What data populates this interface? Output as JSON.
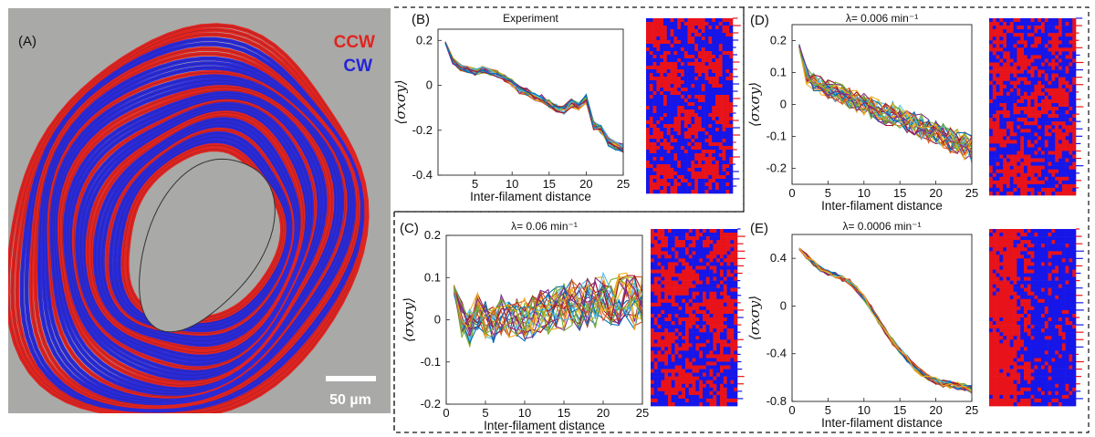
{
  "panel_a": {
    "label": "(A)",
    "legend_ccw": "CCW",
    "legend_cw": "CW",
    "scale_bar": "50 µm",
    "colors": {
      "ccw": "#e0241f",
      "cw": "#2a2ad8",
      "background": "#a9a9a7"
    }
  },
  "chart_data": [
    {
      "id": "B",
      "type": "line",
      "label": "(B)",
      "title": "Experiment",
      "xlabel": "Inter-filament distance",
      "ylabel": "⟨σxσy⟩",
      "xlim": [
        0,
        25
      ],
      "ylim": [
        -0.4,
        0.25
      ],
      "xticks": [
        "5",
        "10",
        "15",
        "20",
        "25"
      ],
      "yticks": [
        "0.2",
        "0",
        "-0.2",
        "-0.4"
      ],
      "x": [
        1,
        2,
        3,
        4,
        5,
        6,
        7,
        8,
        9,
        10,
        11,
        12,
        13,
        14,
        15,
        16,
        17,
        18,
        19,
        20,
        21,
        22,
        23,
        24,
        25
      ],
      "mean": [
        0.19,
        0.11,
        0.08,
        0.07,
        0.06,
        0.07,
        0.06,
        0.05,
        0.03,
        0.01,
        -0.02,
        -0.03,
        -0.05,
        -0.06,
        -0.08,
        -0.1,
        -0.11,
        -0.08,
        -0.09,
        -0.06,
        -0.18,
        -0.2,
        -0.25,
        -0.27,
        -0.28
      ],
      "spread": 0.02,
      "n_series": 22
    },
    {
      "id": "C",
      "type": "line",
      "label": "(C)",
      "title": "λ= 0.06 min⁻¹",
      "xlabel": "Inter-filament distance",
      "ylabel": "⟨σxσy⟩",
      "xlim": [
        0,
        25
      ],
      "ylim": [
        -0.2,
        0.2
      ],
      "xticks": [
        "0",
        "5",
        "10",
        "15",
        "20",
        "25"
      ],
      "yticks": [
        "0.2",
        "0.1",
        "0",
        "-0.1",
        "-0.2"
      ],
      "x": [
        1,
        2,
        3,
        4,
        5,
        6,
        7,
        8,
        9,
        10,
        11,
        12,
        13,
        14,
        15,
        16,
        17,
        18,
        19,
        20,
        21,
        22,
        23,
        24,
        25
      ],
      "mean": [
        0.07,
        0.0,
        -0.02,
        0.02,
        0.0,
        -0.01,
        0.01,
        0.0,
        0.01,
        0.0,
        0.01,
        0.02,
        0.02,
        0.03,
        0.03,
        0.04,
        0.03,
        0.04,
        0.04,
        0.05,
        0.04,
        0.05,
        0.05,
        0.04,
        0.05
      ],
      "spread": 0.06,
      "n_series": 26
    },
    {
      "id": "D",
      "type": "line",
      "label": "(D)",
      "title": "λ= 0.006 min⁻¹",
      "xlabel": "Inter-filament distance",
      "ylabel": "⟨σxσy⟩",
      "xlim": [
        0,
        25
      ],
      "ylim": [
        -0.25,
        0.25
      ],
      "xticks": [
        "0",
        "5",
        "10",
        "15",
        "20",
        "25"
      ],
      "yticks": [
        "0.2",
        "0.1",
        "0",
        "-0.1",
        "-0.2"
      ],
      "x": [
        1,
        2,
        3,
        4,
        5,
        6,
        7,
        8,
        9,
        10,
        11,
        12,
        13,
        14,
        15,
        16,
        17,
        18,
        19,
        20,
        21,
        22,
        23,
        24,
        25
      ],
      "mean": [
        0.18,
        0.09,
        0.07,
        0.06,
        0.05,
        0.04,
        0.03,
        0.02,
        0.01,
        0.0,
        -0.01,
        -0.02,
        -0.03,
        -0.03,
        -0.04,
        -0.05,
        -0.06,
        -0.07,
        -0.08,
        -0.09,
        -0.1,
        -0.11,
        -0.12,
        -0.13,
        -0.14
      ],
      "spread": 0.04,
      "n_series": 26
    },
    {
      "id": "E",
      "type": "line",
      "label": "(E)",
      "title": "λ= 0.0006 min⁻¹",
      "xlabel": "Inter-filament distance",
      "ylabel": "⟨σxσy⟩",
      "xlim": [
        0,
        25
      ],
      "ylim": [
        -0.8,
        0.6
      ],
      "xticks": [
        "0",
        "5",
        "10",
        "15",
        "20",
        "25"
      ],
      "yticks": [
        "0.4",
        "0",
        "-0.4",
        "-0.8"
      ],
      "x": [
        1,
        2,
        3,
        4,
        5,
        6,
        7,
        8,
        9,
        10,
        11,
        12,
        13,
        14,
        15,
        16,
        17,
        18,
        19,
        20,
        21,
        22,
        23,
        24,
        25
      ],
      "mean": [
        0.48,
        0.42,
        0.36,
        0.31,
        0.28,
        0.26,
        0.23,
        0.2,
        0.14,
        0.07,
        -0.02,
        -0.12,
        -0.21,
        -0.3,
        -0.37,
        -0.44,
        -0.51,
        -0.56,
        -0.6,
        -0.63,
        -0.65,
        -0.66,
        -0.67,
        -0.68,
        -0.7
      ],
      "spread": 0.03,
      "n_series": 24
    }
  ],
  "series_colors": [
    "#0072bd",
    "#d95319",
    "#edb120",
    "#7e2f8e",
    "#77ac30",
    "#4dbeee",
    "#a2142f"
  ],
  "heatmaps": {
    "B": {
      "style": "experiment",
      "colors": [
        "#e8131a",
        "#1616e8"
      ]
    },
    "C": {
      "style": "mixed",
      "colors": [
        "#e8131a",
        "#1616e8"
      ]
    },
    "D": {
      "style": "mixed",
      "colors": [
        "#e8131a",
        "#1616e8"
      ]
    },
    "E": {
      "style": "split",
      "colors": [
        "#1616e8",
        "#e8131a"
      ]
    }
  }
}
